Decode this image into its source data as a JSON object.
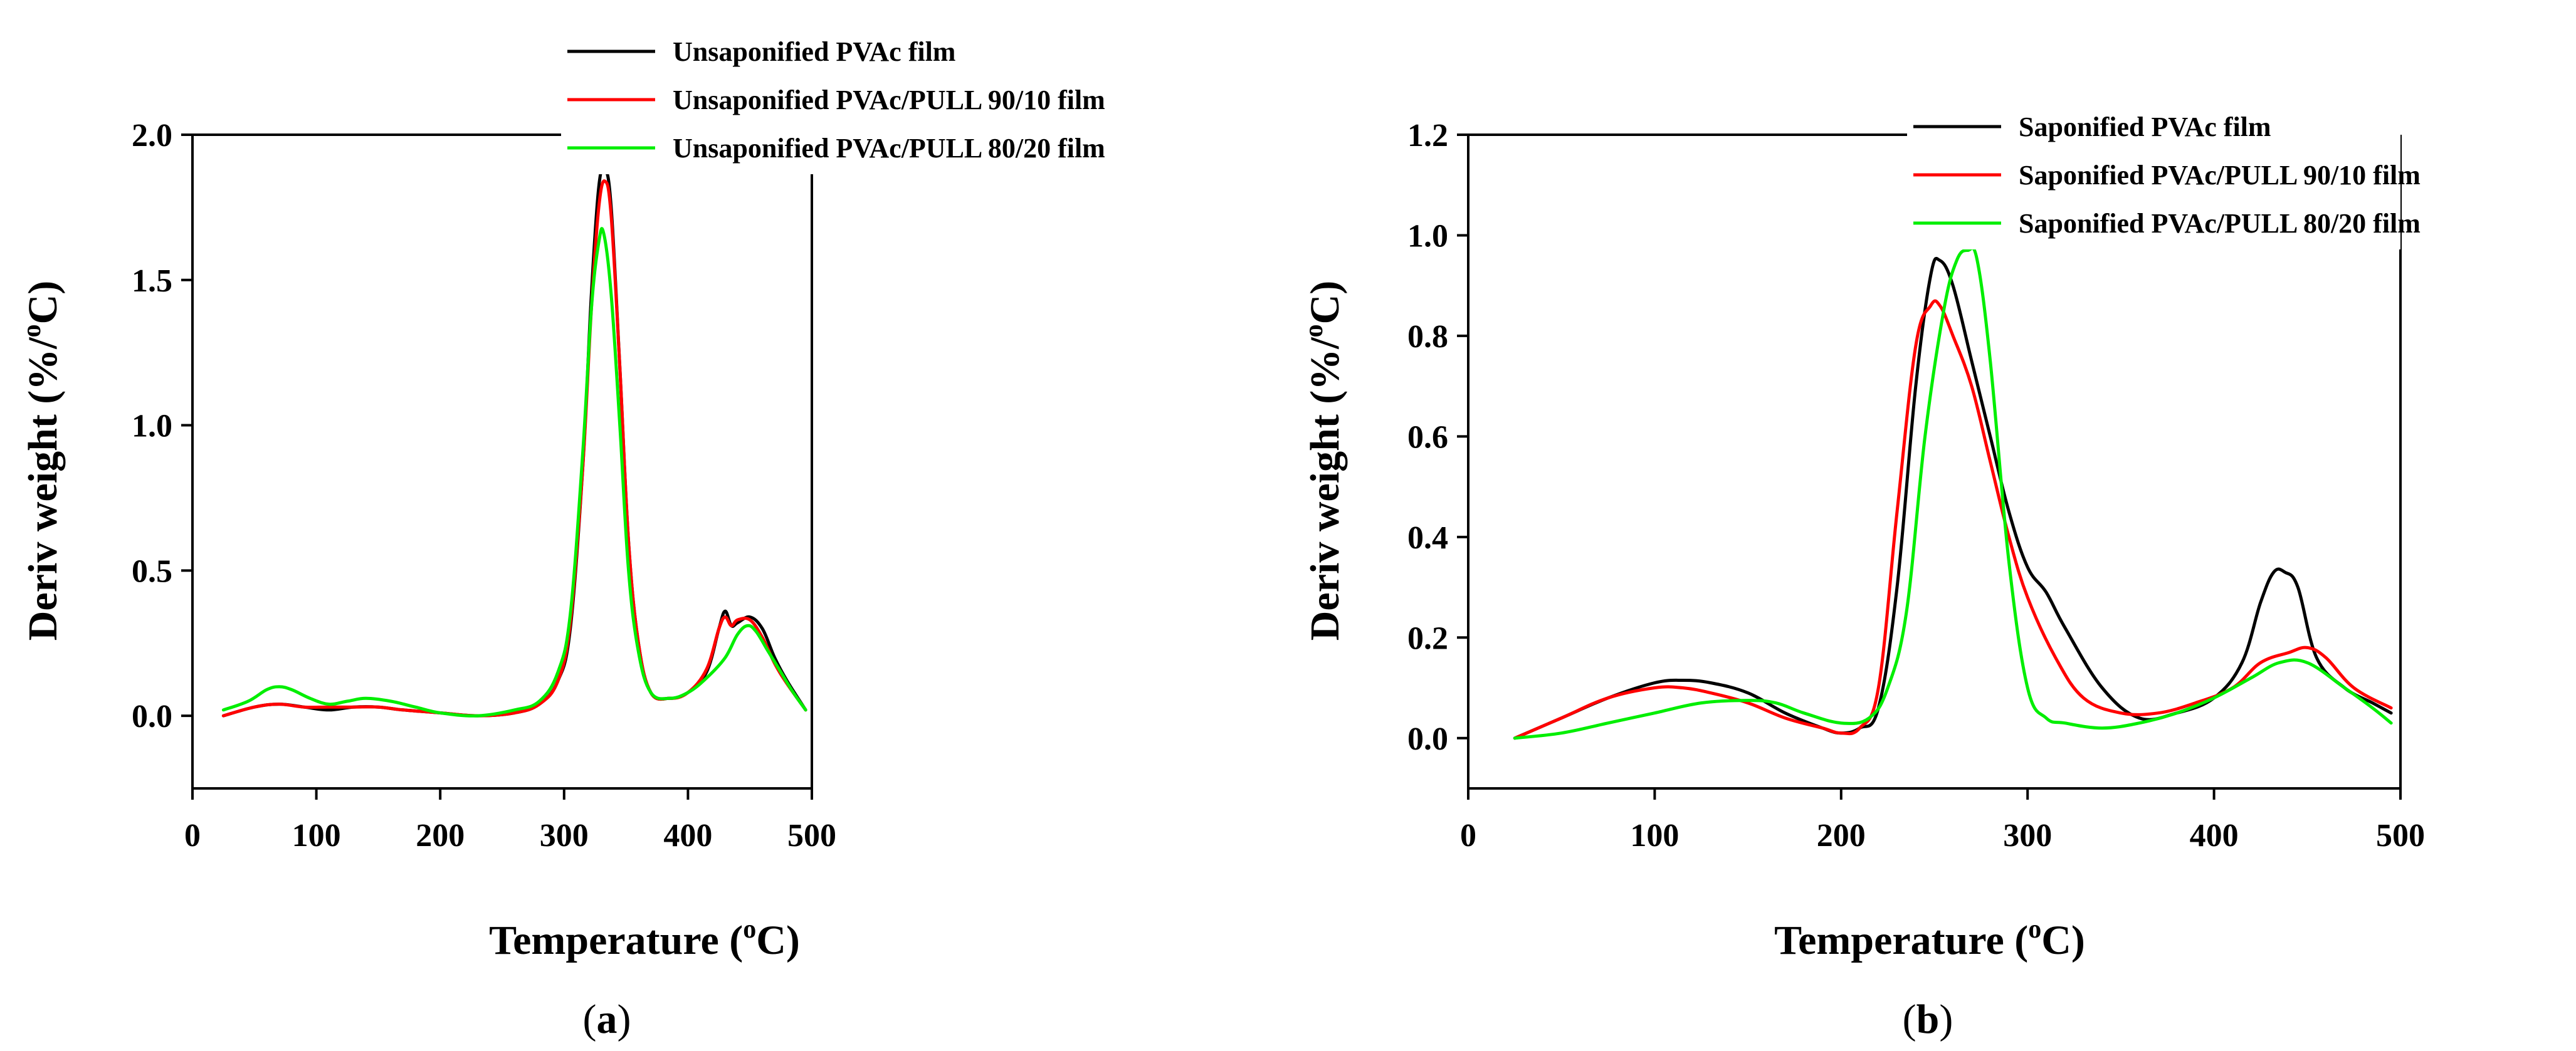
{
  "chart_data": [
    {
      "type": "line",
      "panel_label": {
        "open": "(",
        "letter": "a",
        "close": ")"
      },
      "xlabel": {
        "text": "Temperature (",
        "sup": "o",
        "unit": "C)"
      },
      "ylabel": {
        "text": "Deriv weight (%/",
        "sup": "o",
        "unit": "C)"
      },
      "xlim": [
        0,
        500
      ],
      "ylim": [
        -0.25,
        2.0
      ],
      "xticks": [
        0,
        100,
        200,
        300,
        400,
        500
      ],
      "xtick_labels": [
        "0",
        "100",
        "200",
        "300",
        "400",
        "500"
      ],
      "yticks": [
        0.0,
        0.5,
        1.0,
        1.5,
        2.0
      ],
      "ytick_labels": [
        "0.0",
        "0.5",
        "1.0",
        "1.5",
        "2.0"
      ],
      "legend_position": "top-center",
      "series": [
        {
          "name": "Unsaponified PVAc film",
          "color": "#000000",
          "x": [
            25,
            50,
            70,
            90,
            110,
            130,
            150,
            170,
            200,
            230,
            260,
            280,
            295,
            305,
            315,
            322,
            328,
            333,
            338,
            345,
            352,
            360,
            370,
            385,
            400,
            415,
            425,
            430,
            435,
            440,
            450,
            460,
            470,
            480,
            495
          ],
          "y": [
            0.0,
            0.03,
            0.04,
            0.03,
            0.02,
            0.03,
            0.03,
            0.02,
            0.01,
            0.0,
            0.01,
            0.04,
            0.12,
            0.3,
            0.85,
            1.45,
            1.82,
            1.88,
            1.75,
            1.2,
            0.6,
            0.25,
            0.08,
            0.06,
            0.08,
            0.15,
            0.3,
            0.36,
            0.31,
            0.32,
            0.34,
            0.3,
            0.2,
            0.12,
            0.02
          ]
        },
        {
          "name": "Unsaponified PVAc/PULL 90/10 film",
          "color": "#ff0000",
          "x": [
            25,
            50,
            70,
            90,
            110,
            130,
            150,
            170,
            200,
            230,
            260,
            280,
            295,
            305,
            315,
            322,
            328,
            333,
            338,
            345,
            352,
            360,
            370,
            385,
            400,
            415,
            425,
            430,
            435,
            440,
            450,
            460,
            470,
            480,
            495
          ],
          "y": [
            0.0,
            0.03,
            0.04,
            0.03,
            0.03,
            0.03,
            0.03,
            0.02,
            0.01,
            0.0,
            0.01,
            0.04,
            0.12,
            0.32,
            0.85,
            1.4,
            1.75,
            1.84,
            1.72,
            1.2,
            0.6,
            0.25,
            0.08,
            0.06,
            0.08,
            0.16,
            0.3,
            0.34,
            0.31,
            0.33,
            0.33,
            0.27,
            0.18,
            0.11,
            0.02
          ]
        },
        {
          "name": "Unsaponified PVAc/PULL 80/20 film",
          "color": "#00ee00",
          "x": [
            25,
            45,
            60,
            70,
            80,
            95,
            110,
            125,
            140,
            160,
            180,
            200,
            230,
            260,
            280,
            295,
            305,
            315,
            322,
            328,
            332,
            338,
            345,
            352,
            360,
            370,
            385,
            400,
            415,
            430,
            440,
            448,
            455,
            465,
            475,
            485,
            495
          ],
          "y": [
            0.02,
            0.05,
            0.09,
            0.1,
            0.09,
            0.06,
            0.04,
            0.05,
            0.06,
            0.05,
            0.03,
            0.01,
            0.0,
            0.02,
            0.05,
            0.15,
            0.35,
            0.9,
            1.4,
            1.63,
            1.66,
            1.45,
            1.0,
            0.5,
            0.22,
            0.08,
            0.06,
            0.08,
            0.13,
            0.2,
            0.28,
            0.31,
            0.29,
            0.22,
            0.15,
            0.08,
            0.02
          ]
        }
      ]
    },
    {
      "type": "line",
      "panel_label": {
        "open": "(",
        "letter": "b",
        "close": ")"
      },
      "xlabel": {
        "text": "Temperature (",
        "sup": "o",
        "unit": "C)"
      },
      "ylabel": {
        "text": "Deriv weight (%/",
        "sup": "o",
        "unit": "C)"
      },
      "xlim": [
        0,
        500
      ],
      "ylim": [
        -0.1,
        1.2
      ],
      "xticks": [
        0,
        100,
        200,
        300,
        400,
        500
      ],
      "xtick_labels": [
        "0",
        "100",
        "200",
        "300",
        "400",
        "500"
      ],
      "yticks": [
        0.0,
        0.2,
        0.4,
        0.6,
        0.8,
        1.0,
        1.2
      ],
      "ytick_labels": [
        "0.0",
        "0.2",
        "0.4",
        "0.6",
        "0.8",
        "1.0",
        "1.2"
      ],
      "legend_position": "top-right",
      "series": [
        {
          "name": "Saponified PVAc film",
          "color": "#000000",
          "x": [
            25,
            50,
            75,
            100,
            115,
            130,
            150,
            170,
            190,
            200,
            210,
            220,
            230,
            240,
            248,
            253,
            260,
            270,
            280,
            290,
            300,
            310,
            320,
            340,
            360,
            380,
            400,
            415,
            425,
            432,
            438,
            445,
            455,
            470,
            485,
            495
          ],
          "y": [
            0.0,
            0.04,
            0.08,
            0.11,
            0.115,
            0.11,
            0.09,
            0.05,
            0.02,
            0.01,
            0.02,
            0.06,
            0.3,
            0.7,
            0.92,
            0.95,
            0.9,
            0.75,
            0.6,
            0.45,
            0.34,
            0.29,
            0.22,
            0.1,
            0.04,
            0.05,
            0.08,
            0.15,
            0.27,
            0.33,
            0.33,
            0.3,
            0.16,
            0.1,
            0.07,
            0.05
          ]
        },
        {
          "name": "Saponified PVAc/PULL 90/10 film",
          "color": "#ff0000",
          "x": [
            25,
            50,
            75,
            100,
            115,
            130,
            150,
            170,
            190,
            200,
            210,
            220,
            230,
            240,
            248,
            253,
            260,
            270,
            280,
            290,
            300,
            315,
            330,
            350,
            370,
            390,
            410,
            425,
            440,
            450,
            460,
            475,
            495
          ],
          "y": [
            0.0,
            0.04,
            0.08,
            0.1,
            0.1,
            0.09,
            0.07,
            0.04,
            0.02,
            0.01,
            0.02,
            0.1,
            0.45,
            0.78,
            0.86,
            0.86,
            0.8,
            0.7,
            0.55,
            0.4,
            0.28,
            0.16,
            0.08,
            0.05,
            0.05,
            0.07,
            0.1,
            0.15,
            0.17,
            0.18,
            0.16,
            0.1,
            0.06
          ]
        },
        {
          "name": "Saponified PVAc/PULL 80/20 film",
          "color": "#00ee00",
          "x": [
            25,
            50,
            75,
            100,
            125,
            150,
            165,
            180,
            200,
            215,
            225,
            235,
            245,
            255,
            262,
            268,
            273,
            280,
            290,
            300,
            310,
            320,
            340,
            360,
            380,
            400,
            420,
            435,
            450,
            470,
            485,
            495
          ],
          "y": [
            0.0,
            0.01,
            0.03,
            0.05,
            0.07,
            0.075,
            0.07,
            0.05,
            0.03,
            0.04,
            0.1,
            0.25,
            0.6,
            0.85,
            0.95,
            0.97,
            0.95,
            0.75,
            0.35,
            0.1,
            0.04,
            0.03,
            0.02,
            0.03,
            0.05,
            0.08,
            0.12,
            0.15,
            0.15,
            0.1,
            0.06,
            0.03
          ]
        }
      ]
    }
  ]
}
